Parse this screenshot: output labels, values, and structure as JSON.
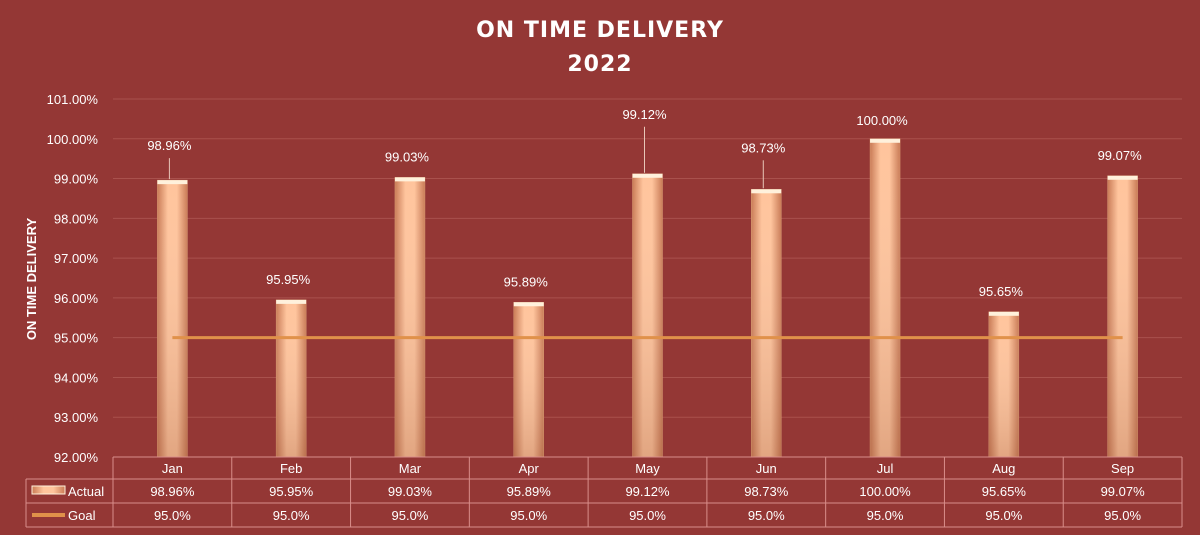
{
  "chart_data": {
    "type": "bar",
    "title": "ON TIME DELIVERY",
    "subtitle": "2022",
    "ylabel": "ON TIME DELIVERY",
    "xlabel": "",
    "ylim": [
      92.0,
      101.0
    ],
    "yticks": [
      "92.00%",
      "93.00%",
      "94.00%",
      "95.00%",
      "96.00%",
      "97.00%",
      "98.00%",
      "99.00%",
      "100.00%",
      "101.00%"
    ],
    "grid": true,
    "categories": [
      "Jan",
      "Feb",
      "Mar",
      "Apr",
      "May",
      "Jun",
      "Jul",
      "Aug",
      "Sep"
    ],
    "series": [
      {
        "name": "Actual",
        "type": "bar",
        "values": [
          98.96,
          95.95,
          99.03,
          95.89,
          99.12,
          98.73,
          100.0,
          95.65,
          99.07
        ],
        "labels": [
          "98.96%",
          "95.95%",
          "99.03%",
          "95.89%",
          "99.12%",
          "98.73%",
          "100.00%",
          "95.65%",
          "99.07%"
        ],
        "color": "#f7b07e"
      },
      {
        "name": "Goal",
        "type": "line",
        "values": [
          95.0,
          95.0,
          95.0,
          95.0,
          95.0,
          95.0,
          95.0,
          95.0,
          95.0
        ],
        "labels": [
          "95.0%",
          "95.0%",
          "95.0%",
          "95.0%",
          "95.0%",
          "95.0%",
          "95.0%",
          "95.0%",
          "95.0%"
        ],
        "color": "#e0914a"
      }
    ],
    "legend": "data-table-left",
    "colors": {
      "background": "#943735",
      "grid": "#a9514d",
      "table": "#d98e8a"
    }
  }
}
